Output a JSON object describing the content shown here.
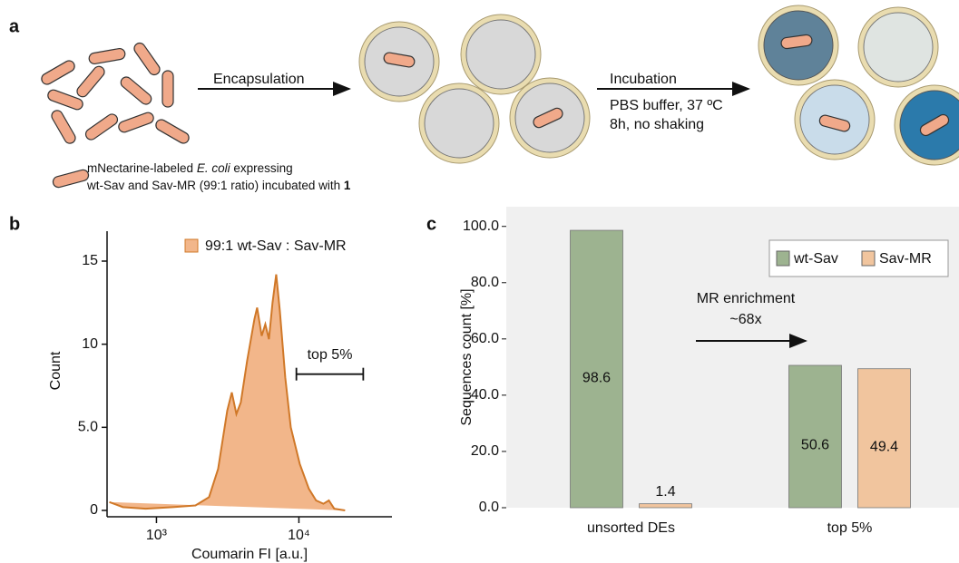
{
  "panel_labels": [
    "a",
    "b",
    "c"
  ],
  "scheme": {
    "step1": "Encapsulation",
    "step2": "Incubation",
    "step2_details": [
      "PBS buffer, 37 ºC",
      "8h, no shaking"
    ],
    "caption_line1": [
      "mNectarine-labeled ",
      "E. coli",
      " expressing"
    ],
    "caption_line2": [
      "wt-Sav and Sav-MR (99:1 ratio) incubated with ",
      "1"
    ]
  },
  "chart_data": [
    {
      "type": "area",
      "x_label": "Coumarin FI [a.u.]",
      "y_label": "Count",
      "log_x": true,
      "xlim": [
        450,
        45000
      ],
      "ylim": [
        0,
        16.8
      ],
      "xticks": [
        {
          "value": 1000,
          "label": "10³"
        },
        {
          "value": 10000,
          "label": "10⁴"
        }
      ],
      "yticks": [
        0,
        {
          "value": 5,
          "label": "5.0"
        },
        10,
        15
      ],
      "series": [
        {
          "name": "99:1 wt-Sav : Sav-MR",
          "color": "#f2b68a",
          "edge_color": "#d07828",
          "x": [
            467,
            581,
            839,
            1300,
            1880,
            2340,
            2710,
            3140,
            3380,
            3640,
            3910,
            4330,
            4870,
            5090,
            5480,
            5810,
            6160,
            6530,
            6930,
            7350,
            8020,
            8770,
            10140,
            11750,
            13200,
            14860,
            16230,
            17720,
            21100
          ],
          "values": [
            0.5,
            0.2,
            0.1,
            0.2,
            0.3,
            0.8,
            2.5,
            6,
            7.1,
            5.8,
            6.5,
            9,
            11.5,
            12.2,
            10.5,
            11.2,
            10.3,
            12.5,
            14.2,
            12,
            8,
            5,
            2.8,
            1.3,
            0.6,
            0.4,
            0.6,
            0.1,
            0
          ]
        }
      ],
      "gate": {
        "label": "top 5%",
        "range": [
          9600,
          28300
        ],
        "level": 8.2
      }
    },
    {
      "type": "bar",
      "y_label": "Sequences count [%]",
      "categories": [
        "unsorted DEs",
        "top 5%"
      ],
      "ylim": [
        0,
        107
      ],
      "yticks": [
        {
          "value": 0,
          "label": "0.0"
        },
        {
          "value": 20,
          "label": "20.0"
        },
        {
          "value": 40,
          "label": "40.0"
        },
        {
          "value": 60,
          "label": "60.0"
        },
        {
          "value": 80,
          "label": "80.0"
        },
        {
          "value": 100,
          "label": "100.0"
        }
      ],
      "series": [
        {
          "name": "wt-Sav",
          "color": "#9db390",
          "values": [
            98.6,
            50.6
          ]
        },
        {
          "name": "Sav-MR",
          "color": "#f1c59e",
          "values": [
            1.4,
            49.4
          ]
        }
      ],
      "annotation": [
        "MR enrichment",
        "~68x"
      ]
    }
  ]
}
